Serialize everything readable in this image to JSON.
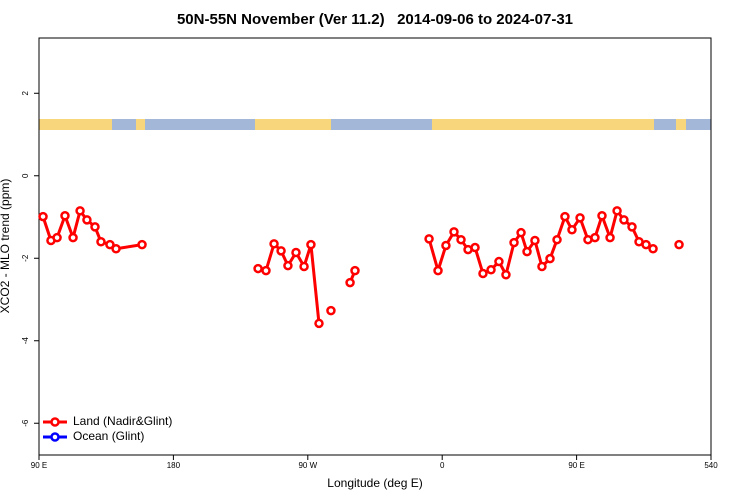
{
  "chart_data": {
    "type": "line",
    "title": "50N-55N November (Ver 11.2)   2014-09-06 to 2024-07-31",
    "xlabel": "Longitude (deg E)",
    "ylabel": "XCO2 - MLO trend (ppm)",
    "xlim": [
      90,
      540
    ],
    "ylim": [
      -6.77,
      3.34
    ],
    "xticks": [
      {
        "value": 90,
        "label": "90 E"
      },
      180,
      {
        "value": 270,
        "label": "90 W"
      },
      {
        "value": 360,
        "label": "0"
      },
      {
        "value": 450,
        "label": "90 E"
      },
      540
    ],
    "yticks": [
      -6,
      -4,
      -2,
      0,
      2
    ],
    "legend": "bottom-left",
    "series": [
      {
        "name": "Land (Nadir&Glint)",
        "color": "#ff0000",
        "x": [
          92.7,
          98.0,
          102.1,
          107.4,
          112.8,
          117.5,
          122.1,
          127.5,
          131.5,
          137.5,
          141.6,
          159.0,
          null,
          236.7,
          242.0,
          247.4,
          252.1,
          256.7,
          262.1,
          267.5,
          272.1,
          277.5,
          null,
          285.5,
          null,
          298.3,
          301.6,
          null,
          351.2,
          357.2,
          362.5,
          367.9,
          372.6,
          377.3,
          382.0,
          387.3,
          392.7,
          398.0,
          402.7,
          408.1,
          412.8,
          416.8,
          422.1,
          426.8,
          432.2,
          436.9,
          442.2,
          446.9,
          452.3,
          457.6,
          462.3,
          467.0,
          472.4,
          477.1,
          481.7,
          487.1,
          491.8,
          496.5,
          501.2,
          null,
          518.6
        ],
        "values": [
          -0.99,
          -1.57,
          -1.5,
          -0.97,
          -1.5,
          -0.85,
          -1.07,
          -1.24,
          -1.6,
          -1.67,
          -1.77,
          -1.67,
          null,
          -2.25,
          -2.3,
          -1.65,
          -1.82,
          -2.18,
          -1.86,
          -2.2,
          -1.67,
          -3.58,
          null,
          -3.27,
          null,
          -2.59,
          -2.3,
          null,
          -1.53,
          -2.3,
          -1.69,
          -1.36,
          -1.55,
          -1.79,
          -1.74,
          -2.37,
          -2.28,
          -2.08,
          -2.4,
          -1.62,
          -1.38,
          -1.84,
          -1.57,
          -2.2,
          -2.01,
          -1.55,
          -0.99,
          -1.31,
          -1.02,
          -1.55,
          -1.5,
          -0.97,
          -1.5,
          -0.85,
          -1.07,
          -1.24,
          -1.6,
          -1.67,
          -1.77,
          null,
          -1.67
        ]
      },
      {
        "name": "Ocean (Glint)",
        "color": "#0000ff",
        "x": [],
        "values": []
      }
    ]
  }
}
